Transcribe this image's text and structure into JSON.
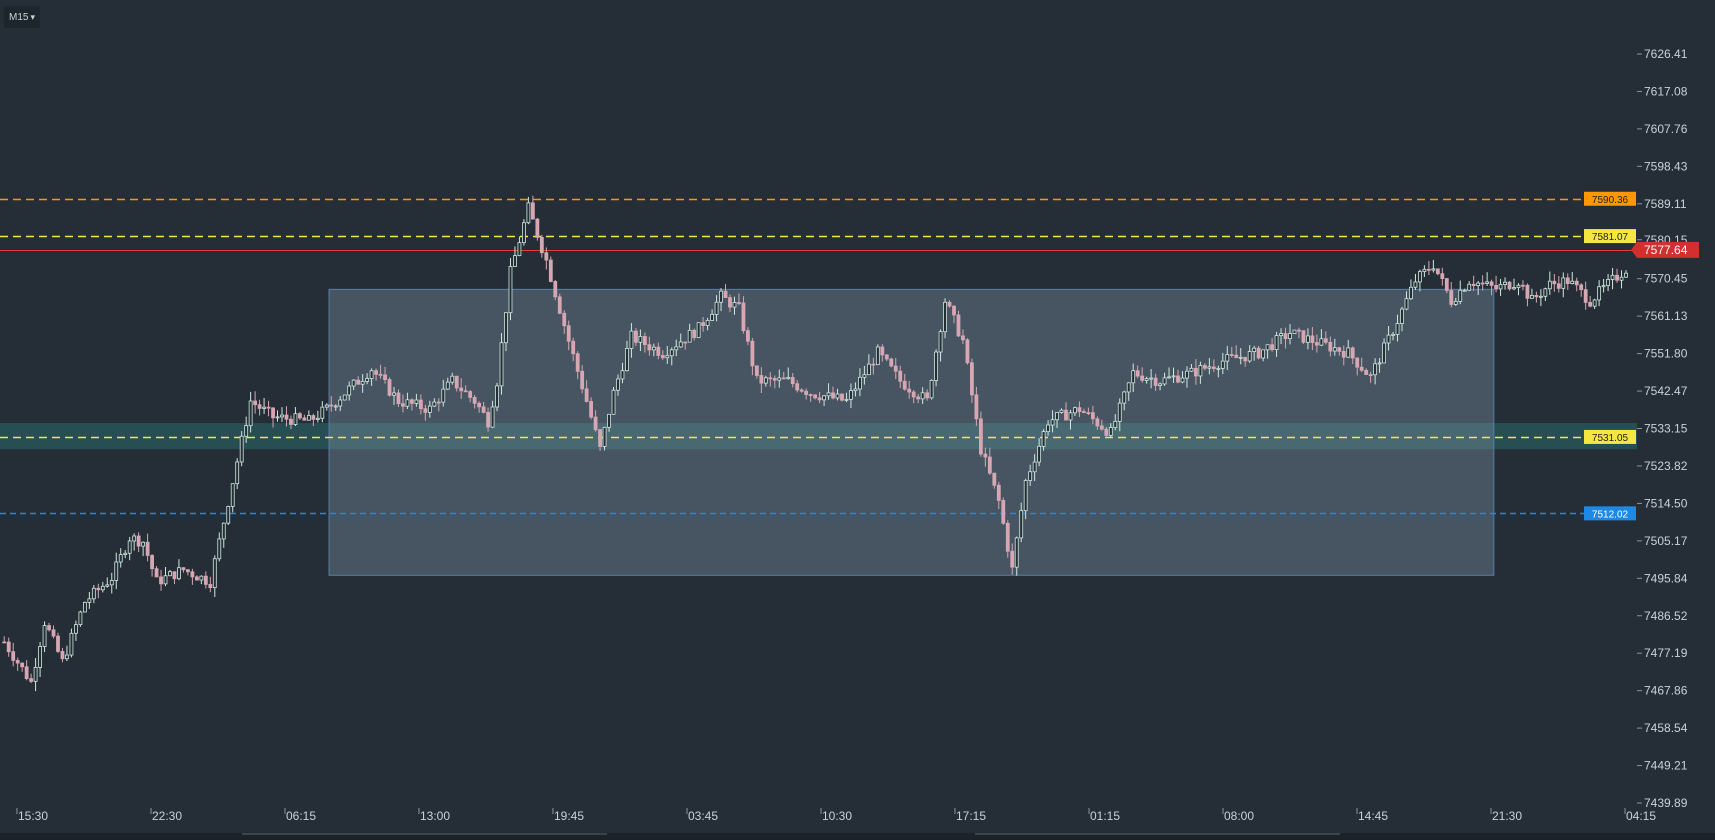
{
  "toolbar": {
    "timeframe": "M15",
    "caret_icon": "caret-down-icon"
  },
  "colors": {
    "background": "#252e36",
    "candle_up": "#cfe8df",
    "candle_down": "#d6a7b3",
    "orange_line": "#ff9800",
    "yellow_line": "#f5e642",
    "blue_line": "#1e88e5",
    "red_line": "#e53935",
    "current_price_bg": "#d32f2f",
    "zone_fill": "#2a6a6a",
    "rect_fill": "#7f95a8"
  },
  "chart_data": {
    "type": "candlestick",
    "symbol_timeframe": "M15",
    "y_axis": {
      "ticks": [
        "7626.41",
        "7617.08",
        "7607.76",
        "7598.43",
        "7589.11",
        "7580.15",
        "7570.45",
        "7561.13",
        "7551.80",
        "7542.47",
        "7533.15",
        "7523.82",
        "7514.50",
        "7505.17",
        "7495.84",
        "7486.52",
        "7477.19",
        "7467.86",
        "7458.54",
        "7449.21",
        "7439.89"
      ],
      "range": [
        7439.89,
        7626.41
      ]
    },
    "x_axis": {
      "ticks": [
        "15:30",
        "22:30",
        "06:15",
        "13:00",
        "19:45",
        "03:45",
        "10:30",
        "17:15",
        "01:15",
        "08:00",
        "14:45",
        "21:30",
        "04:15"
      ]
    },
    "horizontal_lines": [
      {
        "price": 7590.36,
        "label": "7590.36",
        "color": "#ff9800",
        "style": "dashed"
      },
      {
        "price": 7581.07,
        "label": "7581.07",
        "color": "#f5e642",
        "style": "dashed"
      },
      {
        "price": 7531.05,
        "label": "7531.05",
        "color": "#f5e642",
        "style": "dashed"
      },
      {
        "price": 7512.02,
        "label": "7512.02",
        "color": "#1e88e5",
        "style": "dashed"
      },
      {
        "price": 7577.64,
        "label": "7577.64",
        "color": "#e53935",
        "style": "solid",
        "current": true
      }
    ],
    "zones": [
      {
        "from": 7528.0,
        "to": 7534.5,
        "color": "#2a6a6a"
      }
    ],
    "rectangles": [
      {
        "x_from_bar": 73,
        "x_to_bar": 333,
        "price_top": 7567.8,
        "price_bottom": 7496.6,
        "color": "#7f95a8"
      }
    ],
    "series": [
      {
        "close_path": [
          [
            0,
            7480
          ],
          [
            6,
            7470
          ],
          [
            9,
            7485
          ],
          [
            13,
            7475
          ],
          [
            18,
            7490
          ],
          [
            24,
            7496
          ],
          [
            28,
            7506
          ],
          [
            31,
            7505
          ],
          [
            34,
            7495
          ],
          [
            40,
            7498
          ],
          [
            46,
            7495
          ],
          [
            49,
            7510
          ],
          [
            52,
            7525
          ],
          [
            55,
            7540
          ],
          [
            60,
            7536
          ],
          [
            68,
            7535
          ],
          [
            72,
            7538
          ],
          [
            82,
            7548
          ],
          [
            88,
            7540
          ],
          [
            95,
            7538
          ],
          [
            100,
            7545
          ],
          [
            105,
            7540
          ],
          [
            108,
            7535
          ],
          [
            110,
            7545
          ],
          [
            113,
            7572
          ],
          [
            117,
            7588
          ],
          [
            121,
            7575
          ],
          [
            126,
            7555
          ],
          [
            130,
            7540
          ],
          [
            133,
            7528
          ],
          [
            136,
            7542
          ],
          [
            140,
            7556
          ],
          [
            147,
            7552
          ],
          [
            155,
            7558
          ],
          [
            160,
            7566
          ],
          [
            164,
            7563
          ],
          [
            168,
            7545
          ],
          [
            175,
            7545
          ],
          [
            180,
            7542
          ],
          [
            188,
            7540
          ],
          [
            195,
            7552
          ],
          [
            200,
            7545
          ],
          [
            206,
            7540
          ],
          [
            210,
            7565
          ],
          [
            214,
            7555
          ],
          [
            218,
            7528
          ],
          [
            222,
            7515
          ],
          [
            225,
            7498
          ],
          [
            228,
            7520
          ],
          [
            233,
            7535
          ],
          [
            240,
            7538
          ],
          [
            247,
            7532
          ],
          [
            252,
            7547
          ],
          [
            258,
            7545
          ],
          [
            265,
            7547
          ],
          [
            272,
            7550
          ],
          [
            280,
            7552
          ],
          [
            287,
            7557
          ],
          [
            292,
            7555
          ],
          [
            300,
            7552
          ],
          [
            305,
            7546
          ],
          [
            311,
            7560
          ],
          [
            315,
            7570
          ],
          [
            319,
            7574
          ],
          [
            323,
            7565
          ],
          [
            327,
            7570
          ],
          [
            333,
            7568
          ],
          [
            338,
            7570
          ],
          [
            341,
            7565
          ],
          [
            345,
            7569
          ],
          [
            349,
            7570
          ],
          [
            354,
            7565
          ],
          [
            357,
            7568
          ],
          [
            362,
            7573
          ]
        ]
      }
    ]
  }
}
